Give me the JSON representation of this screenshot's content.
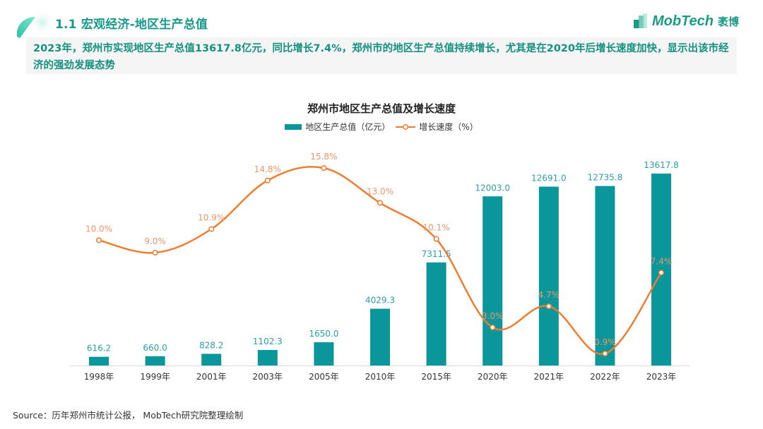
{
  "header": {
    "section_title": "1.1 宏观经济-地区生产总值",
    "brand_name": "MobTech",
    "brand_cn": "袤博"
  },
  "summary": {
    "text": "2023年，郑州市实现地区生产总值13617.8亿元，同比增长7.4%，郑州市的地区生产总值持续增长，尤其是在2020年后增长速度加快，显示出该市经济的强劲发展态势"
  },
  "colors": {
    "accent": "#16998a",
    "bar": "#0a969a",
    "line": "#ed7d31",
    "bar_label": "#2a9fa5",
    "line_label": "#f0956a"
  },
  "chart_data": {
    "type": "bar+line",
    "title": "郑州市地区生产总值及增长速度",
    "categories": [
      "1998年",
      "1999年",
      "2001年",
      "2003年",
      "2005年",
      "2010年",
      "2015年",
      "2020年",
      "2021年",
      "2022年",
      "2023年"
    ],
    "series": [
      {
        "name": "地区生产总值（亿元）",
        "type": "bar",
        "values": [
          616.2,
          660.0,
          828.2,
          1102.3,
          1650.0,
          4029.3,
          7311.5,
          12003.0,
          12691.0,
          12735.8,
          13617.8
        ],
        "labels": [
          "616.2",
          "660.0",
          "828.2",
          "1102.3",
          "1650.0",
          "4029.3",
          "7311.5",
          "12003.0",
          "12691.0",
          "12735.8",
          "13617.8"
        ]
      },
      {
        "name": "增长速度（%）",
        "type": "line",
        "smooth": true,
        "values": [
          10.0,
          9.0,
          10.9,
          14.8,
          15.8,
          13.0,
          10.1,
          3.0,
          4.7,
          0.9,
          7.4
        ],
        "labels": [
          "10.0%",
          "9.0%",
          "10.9%",
          "14.8%",
          "15.8%",
          "13.0%",
          "10.1%",
          "3.0%",
          "4.7%",
          "0.9%",
          "7.4%"
        ]
      }
    ],
    "legend": [
      "地区生产总值（亿元）",
      "增长速度（%）"
    ],
    "legend_position": "top-center",
    "xlabel": "",
    "ylabel": "",
    "y_bar_range": [
      0,
      13617.8
    ],
    "y_line_range": [
      0,
      15.8
    ],
    "grid": false
  },
  "footer": {
    "source": "Source：历年郑州市统计公报， MobTech研究院整理绘制"
  }
}
